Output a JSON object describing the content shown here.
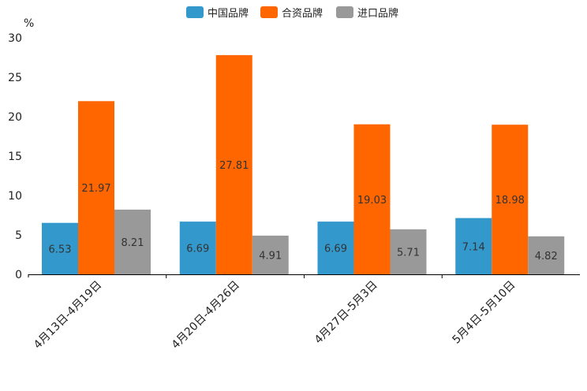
{
  "chart_data": {
    "type": "bar",
    "title": "",
    "xlabel": "",
    "ylabel": "%",
    "ylim": [
      0,
      30
    ],
    "yticks": [
      0,
      5,
      10,
      15,
      20,
      25,
      30
    ],
    "grid": false,
    "legend_position": "top-center",
    "categories": [
      "4月13日-4月19日",
      "4月20日-4月26日",
      "4月27日-5月3日",
      "5月4日-5月10日"
    ],
    "series": [
      {
        "name": "中国品牌",
        "color": "#3399CC",
        "values": [
          6.53,
          6.69,
          6.69,
          7.14
        ]
      },
      {
        "name": "合资品牌",
        "color": "#FF6600",
        "values": [
          21.97,
          27.81,
          19.03,
          18.98
        ]
      },
      {
        "name": "进口品牌",
        "color": "#999999",
        "values": [
          8.21,
          4.91,
          5.71,
          4.82
        ]
      }
    ]
  }
}
